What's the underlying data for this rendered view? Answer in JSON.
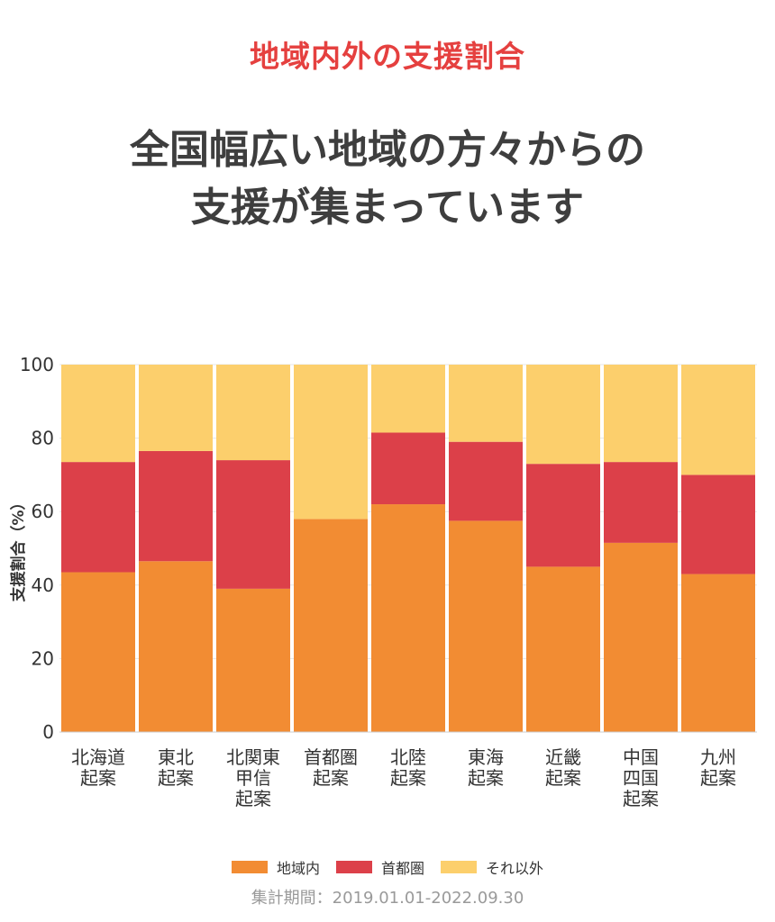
{
  "header": {
    "subtitle": "地域内外の支援割合",
    "headline_line1": "全国幅広い地域の方々からの",
    "headline_line2": "支援が集まっています"
  },
  "colors": {
    "local": "#f28c33",
    "metro": "#dc4049",
    "other": "#fccf6c"
  },
  "footer": {
    "period": "集計期間：2019.01.01-2022.09.30"
  },
  "chart_data": {
    "type": "bar",
    "stacked": true,
    "ylabel": "支援割合（%）",
    "ylim": [
      0,
      100
    ],
    "yticks": [
      0,
      20,
      40,
      60,
      80,
      100
    ],
    "grid": false,
    "legend_position": "bottom",
    "categories": [
      [
        "北海道",
        "起案"
      ],
      [
        "東北",
        "起案"
      ],
      [
        "北関東",
        "甲信",
        "起案"
      ],
      [
        "首都圏",
        "起案"
      ],
      [
        "北陸",
        "起案"
      ],
      [
        "東海",
        "起案"
      ],
      [
        "近畿",
        "起案"
      ],
      [
        "中国",
        "四国",
        "起案"
      ],
      [
        "九州",
        "起案"
      ]
    ],
    "series": [
      {
        "name": "地域内",
        "color": "#f28c33",
        "values": [
          43.5,
          46.5,
          39,
          58,
          62,
          57.5,
          45,
          51.5,
          43
        ]
      },
      {
        "name": "首都圏",
        "color": "#dc4049",
        "values": [
          30,
          30,
          35,
          0,
          19.5,
          21.5,
          28,
          22,
          27
        ]
      },
      {
        "name": "それ以外",
        "color": "#fccf6c",
        "values": [
          26.5,
          23.5,
          26,
          42,
          18.5,
          21,
          27,
          26.5,
          30
        ]
      }
    ]
  }
}
